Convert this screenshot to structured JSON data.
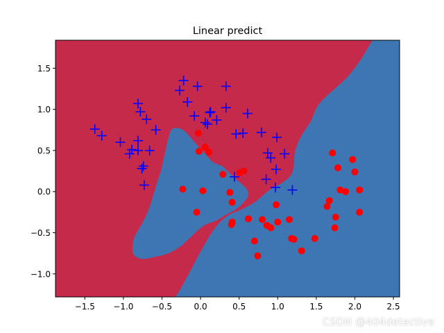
{
  "chart_data": {
    "type": "scatter",
    "title": "Linear predict",
    "xlabel": "",
    "ylabel": "",
    "xlim": [
      -1.88,
      2.58
    ],
    "ylim": [
      -1.28,
      1.84
    ],
    "xticks": [
      -1.5,
      -1.0,
      -0.5,
      0.0,
      0.5,
      1.0,
      1.5,
      2.0,
      2.5
    ],
    "xtick_labels": [
      "−1.5",
      "−1.0",
      "−0.5",
      "0.0",
      "0.5",
      "1.0",
      "1.5",
      "2.0",
      "2.5"
    ],
    "yticks": [
      -1.0,
      -0.5,
      0.0,
      0.5,
      1.0,
      1.5
    ],
    "ytick_labels": [
      "−1.0",
      "−0.5",
      "0.0",
      "0.5",
      "1.0",
      "1.5"
    ],
    "grid": false,
    "colors": {
      "region_class_0": "#c52a4a",
      "region_class_1": "#3e76b3",
      "marker_class_0": "#0000ff",
      "marker_class_1": "#ff0000"
    },
    "series": [
      {
        "marker": "plus",
        "color": "#0000ff",
        "points": [
          [
            -1.37,
            0.76
          ],
          [
            -1.28,
            0.68
          ],
          [
            -1.04,
            0.6
          ],
          [
            -0.92,
            0.46
          ],
          [
            -0.89,
            0.51
          ],
          [
            -0.81,
            1.07
          ],
          [
            -0.81,
            0.62
          ],
          [
            -0.81,
            0.5
          ],
          [
            -0.78,
            0.97
          ],
          [
            -0.76,
            0.28
          ],
          [
            -0.74,
            0.31
          ],
          [
            -0.73,
            0.08
          ],
          [
            -0.7,
            0.88
          ],
          [
            -0.66,
            0.5
          ],
          [
            -0.58,
            0.75
          ],
          [
            -0.27,
            1.23
          ],
          [
            -0.22,
            1.35
          ],
          [
            -0.17,
            1.09
          ],
          [
            -0.08,
            0.92
          ],
          [
            -0.04,
            1.28
          ],
          [
            0.06,
            0.84
          ],
          [
            0.09,
            0.82
          ],
          [
            0.12,
            0.96
          ],
          [
            0.13,
            0.97
          ],
          [
            0.21,
            0.87
          ],
          [
            0.33,
            1.28
          ],
          [
            0.33,
            1.02
          ],
          [
            0.44,
            0.18
          ],
          [
            0.46,
            0.7
          ],
          [
            0.55,
            0.71
          ],
          [
            0.61,
            0.95
          ],
          [
            0.79,
            0.72
          ],
          [
            0.85,
            0.15
          ],
          [
            0.87,
            0.47
          ],
          [
            0.91,
            0.41
          ],
          [
            0.97,
            0.05
          ],
          [
            0.98,
            0.27
          ],
          [
            0.99,
            0.66
          ],
          [
            1.09,
            0.46
          ],
          [
            1.19,
            0.02
          ]
        ]
      },
      {
        "marker": "circle",
        "color": "#ff0000",
        "points": [
          [
            -0.23,
            0.03
          ],
          [
            -0.05,
            -0.25
          ],
          [
            -0.03,
            0.71
          ],
          [
            -0.02,
            0.49
          ],
          [
            0.03,
            0.01
          ],
          [
            0.06,
            0.54
          ],
          [
            0.11,
            0.48
          ],
          [
            0.29,
            0.21
          ],
          [
            0.38,
            -0.01
          ],
          [
            0.41,
            -0.13
          ],
          [
            0.4,
            -0.4
          ],
          [
            0.41,
            -0.37
          ],
          [
            0.51,
            0.23
          ],
          [
            0.56,
            0.25
          ],
          [
            0.62,
            -0.33
          ],
          [
            0.7,
            -0.6
          ],
          [
            0.74,
            -0.78
          ],
          [
            0.8,
            -0.34
          ],
          [
            0.86,
            -0.41
          ],
          [
            0.91,
            -0.44
          ],
          [
            0.98,
            -0.16
          ],
          [
            1.0,
            -0.37
          ],
          [
            1.15,
            -0.34
          ],
          [
            1.18,
            -0.57
          ],
          [
            1.21,
            -0.58
          ],
          [
            1.31,
            -0.72
          ],
          [
            1.48,
            -0.57
          ],
          [
            1.64,
            -0.18
          ],
          [
            1.67,
            -0.11
          ],
          [
            1.71,
            0.47
          ],
          [
            1.74,
            -0.44
          ],
          [
            1.75,
            -0.31
          ],
          [
            1.78,
            0.29
          ],
          [
            1.81,
            0.02
          ],
          [
            1.88,
            0.0
          ],
          [
            1.97,
            0.39
          ],
          [
            2.0,
            0.24
          ],
          [
            2.06,
            0.02
          ],
          [
            2.06,
            -0.25
          ]
        ]
      }
    ],
    "decision_regions": {
      "class_0_color": "#c52a4a",
      "class_1_color": "#3e76b3",
      "class_1_lower_right": [
        [
          2.58,
          1.84
        ],
        [
          2.23,
          1.84
        ],
        [
          2.17,
          1.75
        ],
        [
          2.05,
          1.57
        ],
        [
          1.9,
          1.39
        ],
        [
          1.75,
          1.26
        ],
        [
          1.62,
          1.15
        ],
        [
          1.51,
          1.03
        ],
        [
          1.43,
          0.86
        ],
        [
          1.34,
          0.73
        ],
        [
          1.27,
          0.61
        ],
        [
          1.22,
          0.47
        ],
        [
          1.21,
          0.32
        ],
        [
          1.17,
          0.2
        ],
        [
          1.06,
          0.11
        ],
        [
          0.88,
          0.01
        ],
        [
          0.7,
          -0.13
        ],
        [
          0.52,
          -0.22
        ],
        [
          0.34,
          -0.3
        ],
        [
          0.18,
          -0.45
        ],
        [
          0.03,
          -0.68
        ],
        [
          -0.12,
          -0.94
        ],
        [
          -0.27,
          -1.2
        ],
        [
          -0.33,
          -1.28
        ],
        [
          2.58,
          -1.28
        ]
      ],
      "class_1_island": [
        [
          -0.37,
          0.76
        ],
        [
          -0.28,
          0.77
        ],
        [
          -0.2,
          0.73
        ],
        [
          -0.13,
          0.66
        ],
        [
          -0.04,
          0.56
        ],
        [
          0.06,
          0.46
        ],
        [
          0.16,
          0.36
        ],
        [
          0.28,
          0.31
        ],
        [
          0.36,
          0.24
        ],
        [
          0.46,
          0.15
        ],
        [
          0.58,
          0.05
        ],
        [
          0.62,
          -0.04
        ],
        [
          0.55,
          -0.14
        ],
        [
          0.45,
          -0.22
        ],
        [
          0.31,
          -0.29
        ],
        [
          0.21,
          -0.35
        ],
        [
          0.09,
          -0.39
        ],
        [
          -0.01,
          -0.45
        ],
        [
          -0.09,
          -0.52
        ],
        [
          -0.17,
          -0.59
        ],
        [
          -0.28,
          -0.68
        ],
        [
          -0.44,
          -0.76
        ],
        [
          -0.58,
          -0.79
        ],
        [
          -0.74,
          -0.82
        ],
        [
          -0.84,
          -0.79
        ],
        [
          -0.88,
          -0.72
        ],
        [
          -0.86,
          -0.56
        ],
        [
          -0.76,
          -0.39
        ],
        [
          -0.67,
          -0.21
        ],
        [
          -0.59,
          0.03
        ],
        [
          -0.51,
          0.27
        ],
        [
          -0.46,
          0.48
        ],
        [
          -0.42,
          0.64
        ]
      ]
    }
  },
  "watermark": "CSDN @404detective"
}
